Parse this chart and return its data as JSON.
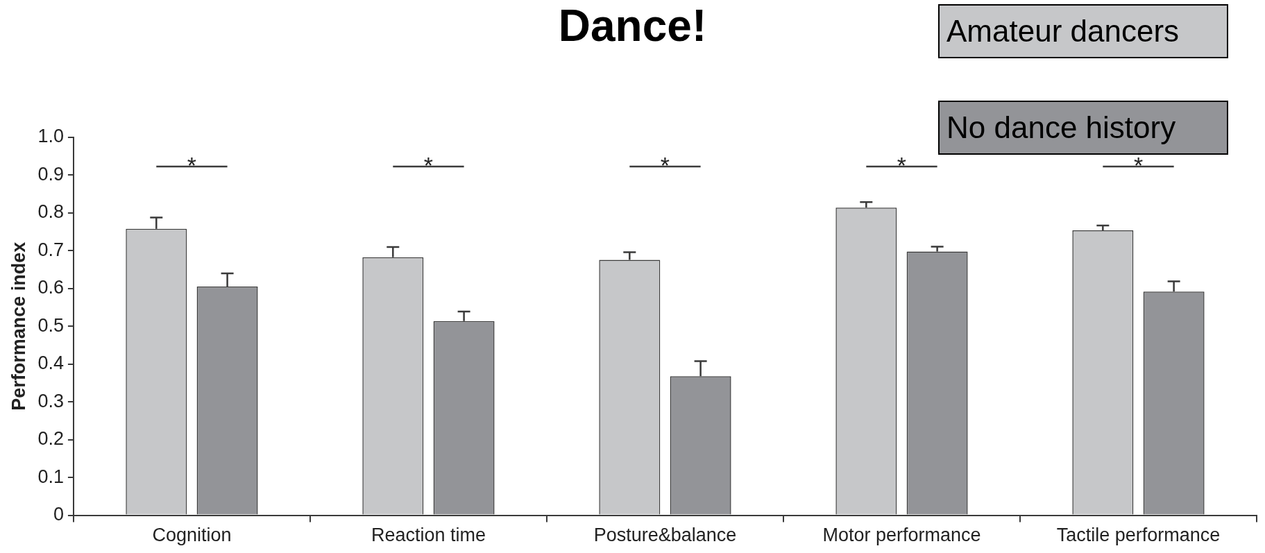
{
  "chart_data": {
    "type": "bar",
    "title": "Dance!",
    "ylabel": "Performance index",
    "categories": [
      "Cognition",
      "Reaction time",
      "Posture&balance",
      "Motor performance",
      "Tactile performance"
    ],
    "series": [
      {
        "name": "Amateur dancers",
        "color": "#c6c7c9",
        "values": [
          0.758,
          0.683,
          0.676,
          0.814,
          0.754
        ],
        "errors": [
          0.03,
          0.027,
          0.02,
          0.015,
          0.013
        ]
      },
      {
        "name": "No dance history",
        "color": "#939498",
        "values": [
          0.605,
          0.514,
          0.368,
          0.698,
          0.592
        ],
        "errors": [
          0.035,
          0.025,
          0.04,
          0.013,
          0.027
        ]
      }
    ],
    "ylim": [
      0,
      1
    ],
    "yticks": [
      0,
      0.1,
      0.2,
      0.3,
      0.4,
      0.5,
      0.6,
      0.7,
      0.8,
      0.9,
      {
        "value": 1,
        "label": "1.0"
      }
    ],
    "legend": "top right",
    "grid": false,
    "annotations": [
      "*",
      "*",
      "*",
      "*",
      "*"
    ]
  }
}
